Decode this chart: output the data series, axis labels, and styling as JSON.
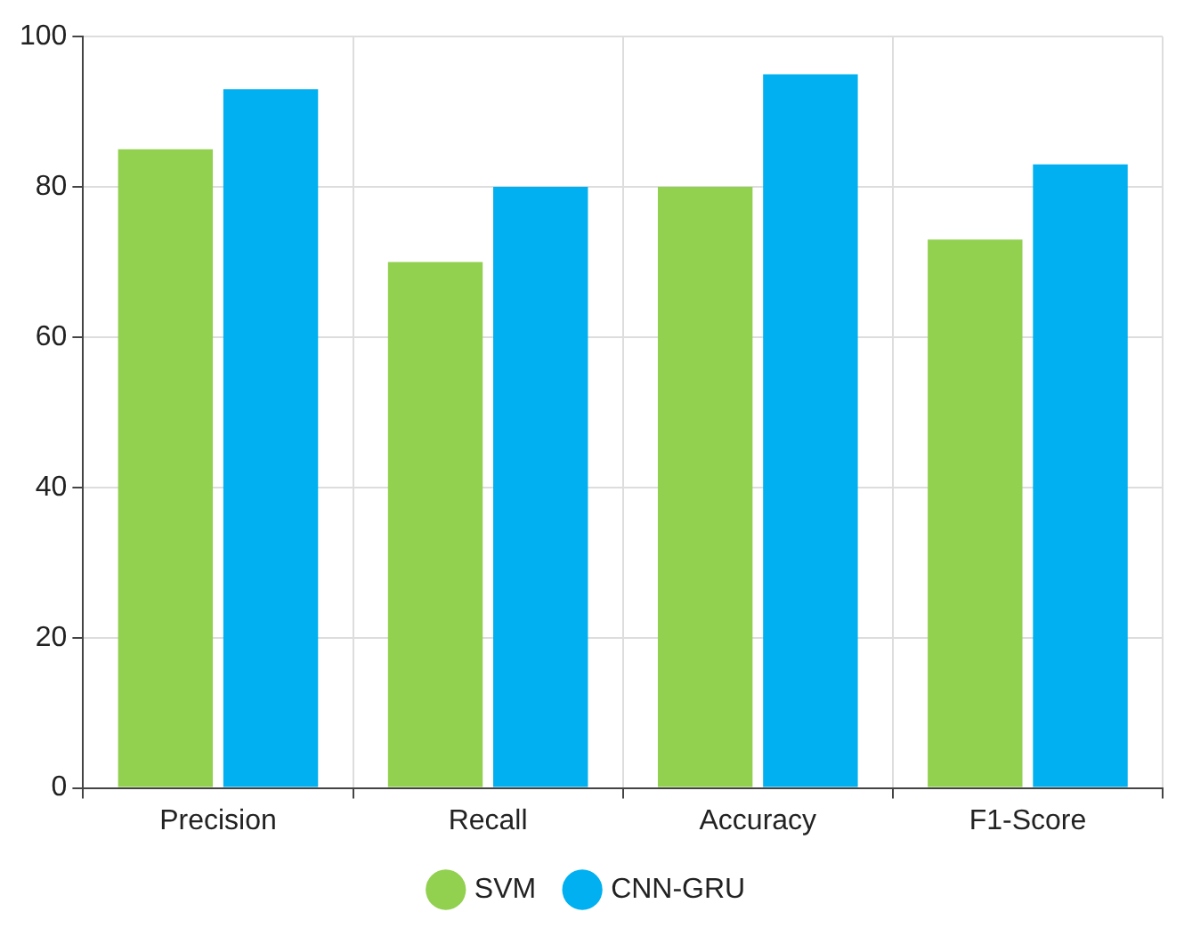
{
  "chart_data": {
    "type": "bar",
    "categories": [
      "Precision",
      "Recall",
      "Accuracy",
      "F1-Score"
    ],
    "series": [
      {
        "name": "SVM",
        "color": "#92d050",
        "values": [
          85,
          70,
          80,
          73
        ]
      },
      {
        "name": "CNN-GRU",
        "color": "#00b0f0",
        "values": [
          93,
          80,
          95,
          83
        ]
      }
    ],
    "ylim": [
      0,
      100
    ],
    "yticks": [
      0,
      20,
      40,
      60,
      80,
      100
    ],
    "grid": true,
    "legend": "bottom"
  }
}
